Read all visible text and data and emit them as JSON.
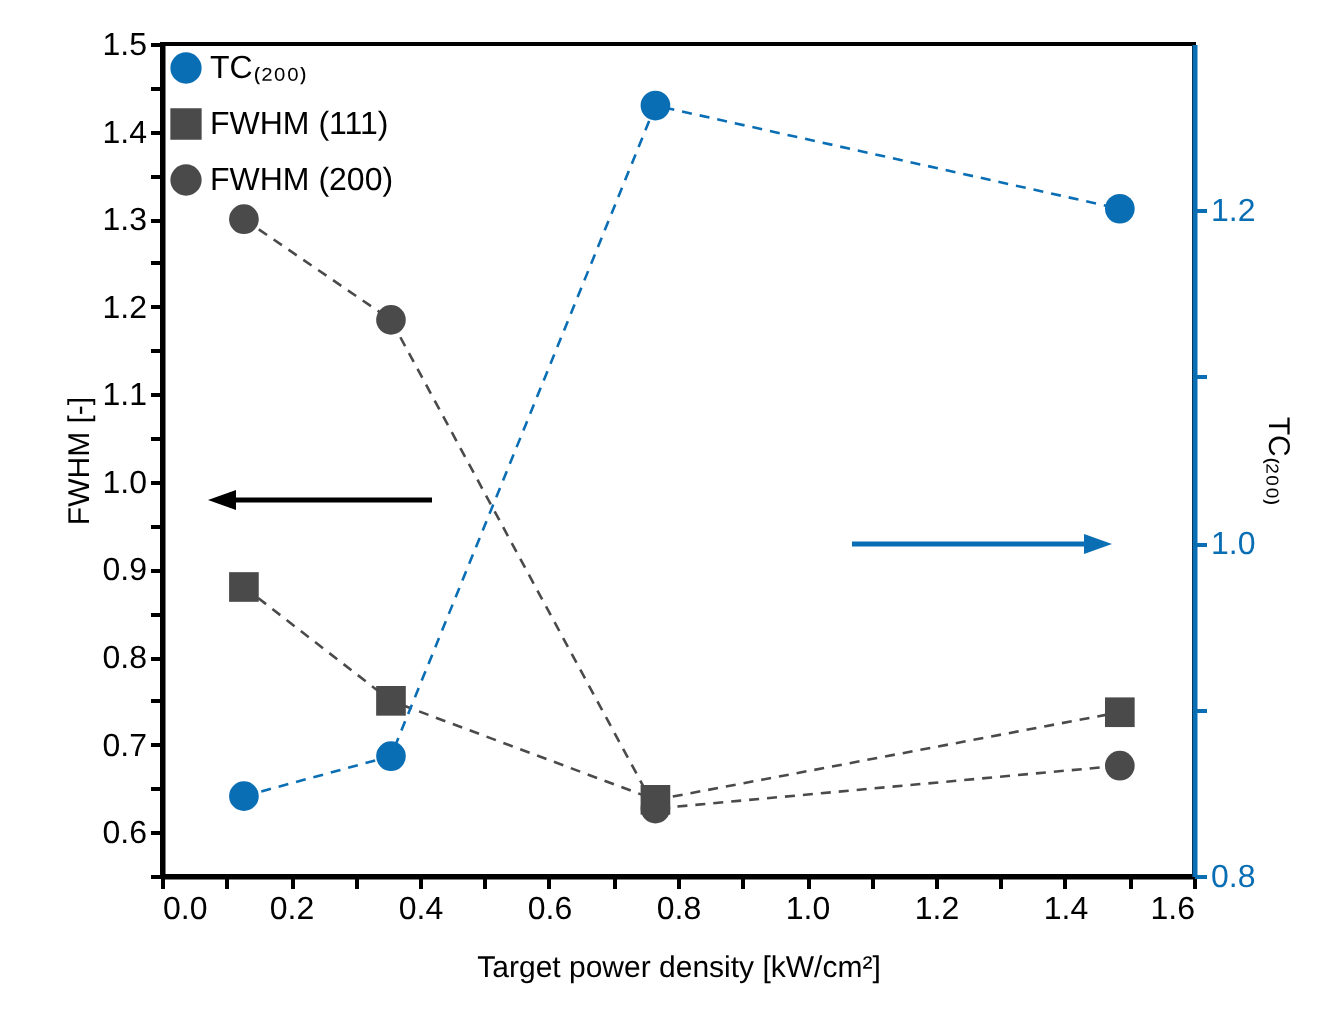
{
  "chart_data": {
    "type": "line",
    "xlabel": "Target power density [kW/cm²]",
    "ylabel": "FWHM [-]",
    "y2label": "TC₍₂₀₀₎",
    "x": [
      0.127,
      0.355,
      0.765,
      1.485
    ],
    "series": [
      {
        "name": "TC₍₂₀₀₎",
        "color": "#0a6eb4",
        "values": [
          0.848,
          0.872,
          1.263,
          1.201
        ],
        "axis": "y2",
        "marker": "circle"
      },
      {
        "name": "FWHM (111)",
        "color": "#4a4a4a",
        "values": [
          0.88,
          0.75,
          0.637,
          0.737
        ],
        "marker": "square"
      },
      {
        "name": "FWHM (200)",
        "color": "#4a4a4a",
        "values": [
          1.3,
          1.185,
          0.627,
          0.676
        ],
        "marker": "circle"
      }
    ],
    "line_style": "dashed",
    "legend": "top left",
    "grid": false,
    "xlim": [
      0,
      1.6
    ],
    "xticks": [
      {
        "value": 0,
        "label": "0.0"
      },
      {
        "value": 0.1,
        "label": null
      },
      0.2,
      {
        "value": 0.3,
        "label": null
      },
      0.4,
      {
        "value": 0.5,
        "label": null
      },
      0.6,
      {
        "value": 0.7,
        "label": null
      },
      0.8,
      {
        "value": 0.9,
        "label": null
      },
      {
        "value": 1,
        "label": "1.0"
      },
      {
        "value": 1.1,
        "label": null
      },
      1.2,
      {
        "value": 1.3,
        "label": null
      },
      1.4,
      {
        "value": 1.5,
        "label": null
      },
      1.6
    ],
    "ylim": [
      0.55,
      1.5
    ],
    "yticks": [
      {
        "value": 0.55,
        "label": null
      },
      0.6,
      {
        "value": 0.65,
        "label": null
      },
      0.7,
      {
        "value": 0.75,
        "label": null
      },
      0.8,
      {
        "value": 0.85,
        "label": null
      },
      0.9,
      {
        "value": 0.95,
        "label": null
      },
      {
        "value": 1,
        "label": "1.0"
      },
      {
        "value": 1.05,
        "label": null
      },
      1.1,
      {
        "value": 1.15,
        "label": null
      },
      1.2,
      {
        "value": 1.25,
        "label": null
      },
      1.3,
      {
        "value": 1.35,
        "label": null
      },
      1.4,
      {
        "value": 1.45,
        "label": null
      },
      1.5
    ],
    "y2lim": [
      0.8,
      1.3
    ],
    "y2ticks": [
      0.8,
      {
        "value": 0.9,
        "label": null
      },
      {
        "value": 1,
        "label": "1.0"
      },
      {
        "value": 1.1,
        "label": null
      },
      1.2
    ]
  }
}
